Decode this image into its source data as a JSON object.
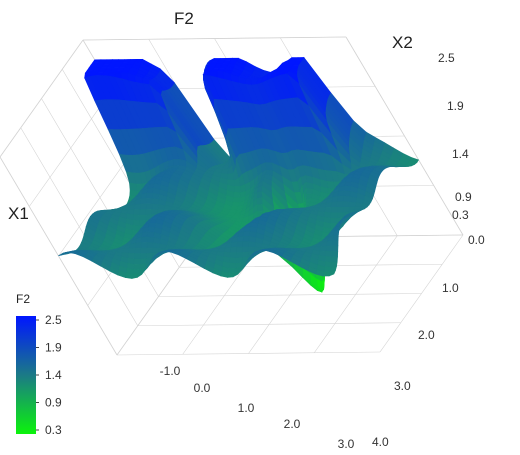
{
  "chart_data": {
    "type": "surface3d",
    "axes": {
      "x1": {
        "title": "X1",
        "ticks": [
          "-1.0",
          "0.0",
          "1.0",
          "2.0",
          "3.0"
        ],
        "range": [
          -1.0,
          3.0
        ]
      },
      "x2": {
        "title": "X2",
        "ticks": [
          "0.0",
          "1.0",
          "2.0",
          "3.0",
          "4.0"
        ],
        "range": [
          0.0,
          4.0
        ]
      },
      "f2": {
        "title": "F2",
        "ticks": [
          "0.3",
          "0.9",
          "1.4",
          "1.9",
          "2.5"
        ],
        "range": [
          0.3,
          2.5
        ]
      }
    },
    "colorbar": {
      "title": "F2",
      "ticks": [
        "2.5",
        "1.9",
        "1.4",
        "0.9",
        "0.3"
      ],
      "colors": {
        "high": "#0016ff",
        "mid": "#1b7a86",
        "low": "#0cf30c"
      }
    },
    "surface_features": {
      "baseline": 1.4,
      "ridges": [
        {
          "x1": -0.6,
          "x2": 0.0,
          "to_x2": 1.3,
          "height": 2.5
        },
        {
          "x1": -0.6,
          "x2": 2.2,
          "to_x2": 3.4,
          "height": 2.5
        }
      ],
      "valley": {
        "x1": 1.7,
        "x2": 2.5,
        "depth": 0.3
      }
    },
    "grid": true
  }
}
